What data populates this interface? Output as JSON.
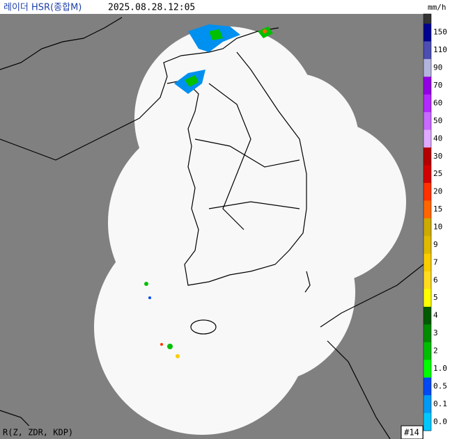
{
  "header": {
    "title": "레이더 HSR(종합M)",
    "timestamp": "2025.08.28.12:05",
    "unit": "mm/h"
  },
  "legend": [
    {
      "label": "150",
      "color": "#000390"
    },
    {
      "label": "110",
      "color": "#4c4eb1"
    },
    {
      "label": "90",
      "color": "#b3b4de"
    },
    {
      "label": "70",
      "color": "#9300e4"
    },
    {
      "label": "60",
      "color": "#b329ff"
    },
    {
      "label": "50",
      "color": "#c969ff"
    },
    {
      "label": "40",
      "color": "#dfa9ff"
    },
    {
      "label": "30",
      "color": "#b40000"
    },
    {
      "label": "25",
      "color": "#d20000"
    },
    {
      "label": "20",
      "color": "#ff3200"
    },
    {
      "label": "15",
      "color": "#ff6600"
    },
    {
      "label": "10",
      "color": "#ccaa00"
    },
    {
      "label": "9",
      "color": "#e0b900"
    },
    {
      "label": "7",
      "color": "#f9cd00"
    },
    {
      "label": "6",
      "color": "#ffdc1f"
    },
    {
      "label": "5",
      "color": "#ffff00"
    },
    {
      "label": "4",
      "color": "#005a00"
    },
    {
      "label": "3",
      "color": "#008c00"
    },
    {
      "label": "2",
      "color": "#00be00"
    },
    {
      "label": "1.0",
      "color": "#00ff00"
    },
    {
      "label": "0.5",
      "color": "#0049f5"
    },
    {
      "label": "0.1",
      "color": "#009bf5"
    },
    {
      "label": "0.0",
      "color": "#00c8ff"
    }
  ],
  "footer": {
    "method": "R(Z, ZDR, KDP)",
    "site_count": "#14"
  }
}
